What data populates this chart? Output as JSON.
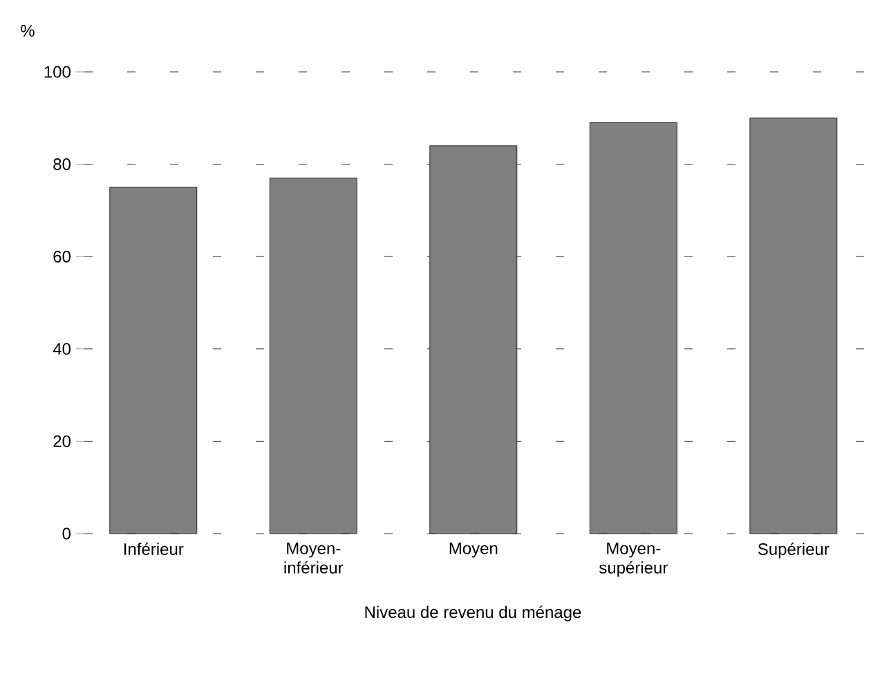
{
  "chart_data": {
    "type": "bar",
    "ylabel": "%",
    "xlabel": "Niveau de revenu du ménage",
    "categories": [
      "Inférieur",
      "Moyen-inférieur",
      "Moyen",
      "Moyen-supérieur",
      "Supérieur"
    ],
    "values": [
      75,
      77,
      84,
      89,
      90
    ],
    "color": "#808080",
    "ylim": [
      0,
      100
    ],
    "yticks": [
      0,
      20,
      40,
      60,
      80,
      100
    ],
    "grid": "y"
  }
}
